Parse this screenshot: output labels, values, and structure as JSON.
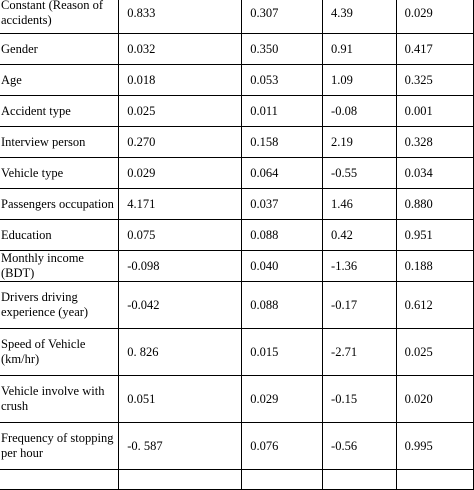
{
  "table": {
    "rows": [
      {
        "label": "Constant (Reason of accidents)",
        "b": "0.833",
        "se": "0.307",
        "t": "4.39",
        "sig": "0.029"
      },
      {
        "label": "Gender",
        "b": "0.032",
        "se": "0.350",
        "t": "0.91",
        "sig": "0.417"
      },
      {
        "label": "Age",
        "b": "0.018",
        "se": "0.053",
        "t": "1.09",
        "sig": "0.325"
      },
      {
        "label": "Accident type",
        "b": "0.025",
        "se": "0.011",
        "t": "-0.08",
        "sig": "0.001"
      },
      {
        "label": "Interview person",
        "b": "0.270",
        "se": "0.158",
        "t": "2.19",
        "sig": "0.328"
      },
      {
        "label": "Vehicle type",
        "b": "0.029",
        "se": "0.064",
        "t": "-0.55",
        "sig": "0.034"
      },
      {
        "label": "Passengers occupation",
        "b": "4.171",
        "se": "0.037",
        "t": "1.46",
        "sig": "0.880"
      },
      {
        "label": "Education",
        "b": "0.075",
        "se": "0.088",
        "t": "0.42",
        "sig": "0.951"
      },
      {
        "label": "Monthly income (BDT)",
        "b": "-0.098",
        "se": "0.040",
        "t": "-1.36",
        "sig": "0.188"
      },
      {
        "label": "Drivers driving experience (year)",
        "b": "-0.042",
        "se": "0.088",
        "t": "-0.17",
        "sig": "0.612"
      },
      {
        "label": "Speed of Vehicle (km/hr)",
        "b": "0. 826",
        "se": "0.015",
        "t": "-2.71",
        "sig": "0.025"
      },
      {
        "label": "Vehicle involve with crush",
        "b": "0.051",
        "se": "0.029",
        "t": "-0.15",
        "sig": "0.020"
      },
      {
        "label": "Frequency of stopping per hour",
        "b": "-0. 587",
        "se": "0.076",
        "t": "-0.56",
        "sig": "0.995"
      },
      {
        "label": "",
        "b": "",
        "se": "",
        "t": "",
        "sig": ""
      }
    ]
  }
}
